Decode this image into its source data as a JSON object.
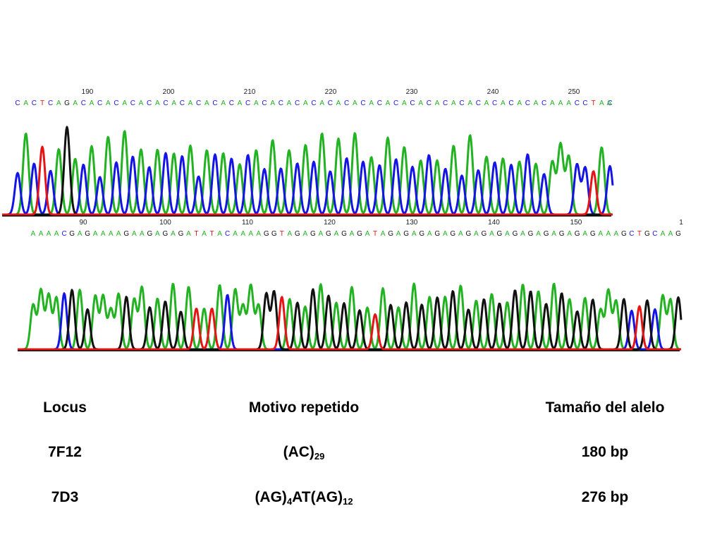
{
  "chromatograms": [
    {
      "id": "7F12",
      "tick_labels": [
        "190",
        "200",
        "210",
        "220",
        "230",
        "240",
        "250"
      ],
      "sequence": "CACTCAGACACACACACACACACACACACACACACACACACACACACACACACACACACACACACAAACCTAC",
      "trailing_fragment": "A"
    },
    {
      "id": "7D3",
      "tick_labels": [
        "90",
        "100",
        "110",
        "120",
        "130",
        "140",
        "150"
      ],
      "edge_tick_label": "1",
      "sequence": "AAAACGAGAAAAGAAGAGAGATATACAAAAGGTAGAGAGAGAGATAGAGAGAGAGAGAGAGAGAGAGAGAGAGAAAGCTGCAAG"
    }
  ],
  "base_colors": {
    "A": "#22b222",
    "C": "#1414e6",
    "G": "#111111",
    "T": "#e61414"
  },
  "table": {
    "headers": {
      "locus": "Locus",
      "motif": "Motivo repetido",
      "size": "Tamaño del alelo"
    },
    "rows": [
      {
        "locus": "7F12",
        "motif": [
          {
            "text": "(AC)"
          },
          {
            "sub": "29"
          }
        ],
        "size": "180 bp"
      },
      {
        "locus": "7D3",
        "motif": [
          {
            "text": "(AG)"
          },
          {
            "sub": "4"
          },
          {
            "text": "AT(AG)"
          },
          {
            "sub": "12"
          }
        ],
        "size": "276 bp"
      }
    ]
  }
}
